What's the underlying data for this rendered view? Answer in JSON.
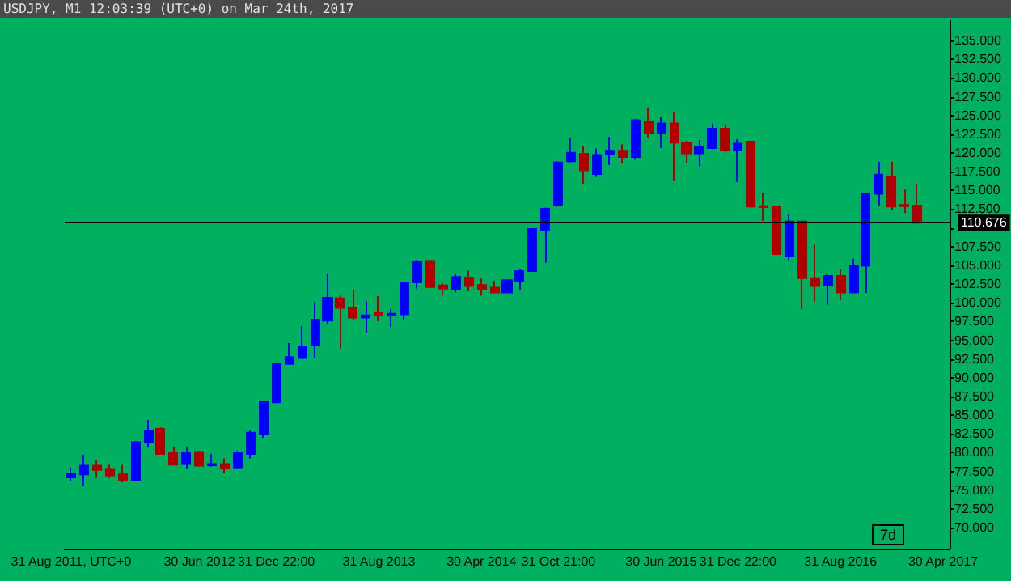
{
  "chart_data": {
    "type": "candlestick",
    "title": "USDJPY, M1 12:03:39 (UTC+0) on Mar 24th, 2017",
    "categories": [
      "31 Aug 2011, UTC+0",
      null,
      null,
      null,
      null,
      null,
      null,
      null,
      null,
      null,
      "30 Jun 2012",
      null,
      null,
      null,
      null,
      null,
      "31 Dec 22:00",
      null,
      null,
      null,
      null,
      null,
      null,
      null,
      "31 Aug 2013",
      null,
      null,
      null,
      null,
      null,
      null,
      null,
      "30 Apr 2014",
      null,
      null,
      null,
      null,
      null,
      "31 Oct 21:00",
      null,
      null,
      null,
      null,
      null,
      null,
      null,
      "30 Jun 2015",
      null,
      null,
      null,
      null,
      null,
      "31 Dec 22:00",
      null,
      null,
      null,
      null,
      null,
      null,
      null,
      "31 Aug 2016",
      null,
      null,
      null,
      null,
      null,
      null,
      null,
      "30 Apr 2017"
    ],
    "ohlc": [
      [
        76.69,
        78.05,
        76.2,
        77.19
      ],
      [
        77.12,
        79.75,
        75.63,
        78.26
      ],
      [
        78.26,
        79.1,
        76.62,
        77.69
      ],
      [
        77.83,
        78.4,
        76.62,
        76.98
      ],
      [
        77.12,
        78.4,
        76.06,
        76.34
      ],
      [
        76.34,
        81.53,
        76.27,
        81.39
      ],
      [
        81.39,
        84.38,
        80.68,
        82.96
      ],
      [
        83.17,
        83.38,
        79.82,
        79.82
      ],
      [
        79.97,
        80.82,
        78.4,
        78.4
      ],
      [
        78.47,
        80.82,
        77.83,
        79.97
      ],
      [
        80.11,
        80.25,
        78.12,
        78.26
      ],
      [
        78.33,
        79.82,
        78.12,
        78.47
      ],
      [
        78.47,
        79.25,
        77.26,
        77.97
      ],
      [
        78.05,
        80.25,
        77.9,
        79.97
      ],
      [
        79.82,
        82.96,
        79.25,
        82.67
      ],
      [
        82.46,
        86.8,
        81.96,
        86.8
      ],
      [
        86.73,
        92.06,
        86.59,
        91.9
      ],
      [
        91.85,
        94.62,
        91.78,
        92.77
      ],
      [
        92.63,
        96.9,
        92.63,
        94.2
      ],
      [
        94.41,
        100.17,
        92.63,
        97.75
      ],
      [
        97.61,
        103.94,
        97.19,
        100.67
      ],
      [
        100.6,
        100.96,
        93.91,
        99.32
      ],
      [
        99.39,
        101.74,
        97.75,
        98.04
      ],
      [
        98.04,
        100.24,
        95.97,
        98.32
      ],
      [
        98.68,
        100.88,
        97.54,
        98.4
      ],
      [
        98.4,
        99.18,
        96.76,
        98.54
      ],
      [
        98.47,
        102.66,
        97.75,
        102.66
      ],
      [
        102.73,
        105.72,
        101.88,
        105.51
      ],
      [
        105.58,
        105.72,
        102.02,
        102.09
      ],
      [
        102.31,
        102.59,
        100.96,
        101.88
      ],
      [
        101.81,
        103.87,
        101.38,
        103.45
      ],
      [
        103.38,
        104.3,
        101.53,
        102.24
      ],
      [
        102.38,
        103.24,
        100.96,
        101.81
      ],
      [
        102.02,
        102.95,
        101.38,
        101.38
      ],
      [
        101.38,
        103.09,
        101.38,
        103.02
      ],
      [
        102.95,
        104.44,
        101.67,
        104.23
      ],
      [
        104.23,
        109.99,
        104.16,
        109.85
      ],
      [
        109.71,
        112.7,
        105.37,
        112.55
      ],
      [
        113.05,
        118.89,
        112.84,
        118.74
      ],
      [
        118.89,
        122.02,
        118.74,
        120.02
      ],
      [
        119.88,
        120.95,
        115.83,
        117.68
      ],
      [
        117.18,
        120.59,
        116.82,
        119.74
      ],
      [
        119.81,
        122.16,
        118.39,
        120.31
      ],
      [
        120.31,
        121.16,
        118.6,
        119.45
      ],
      [
        119.45,
        124.51,
        119.1,
        124.36
      ],
      [
        124.22,
        126.07,
        122.09,
        122.66
      ],
      [
        122.66,
        124.79,
        120.66,
        123.94
      ],
      [
        123.94,
        125.5,
        116.25,
        121.38
      ],
      [
        121.38,
        121.59,
        118.74,
        119.95
      ],
      [
        119.95,
        121.73,
        118.17,
        120.81
      ],
      [
        120.66,
        123.94,
        120.52,
        123.23
      ],
      [
        123.23,
        123.8,
        120.09,
        120.38
      ],
      [
        120.38,
        121.8,
        116.11,
        121.23
      ],
      [
        121.52,
        121.59,
        112.7,
        112.84
      ],
      [
        112.91,
        114.69,
        110.92,
        112.77
      ],
      [
        112.84,
        112.84,
        106.5,
        106.5
      ],
      [
        106.29,
        111.77,
        105.72,
        110.85
      ],
      [
        110.85,
        110.85,
        99.18,
        103.3
      ],
      [
        103.3,
        107.72,
        100.17,
        102.24
      ],
      [
        102.31,
        103.8,
        99.75,
        103.59
      ],
      [
        103.59,
        104.51,
        100.31,
        101.38
      ],
      [
        101.38,
        105.87,
        101.38,
        104.87
      ],
      [
        104.94,
        114.55,
        101.31,
        114.55
      ],
      [
        114.55,
        118.81,
        112.98,
        117.11
      ],
      [
        116.82,
        118.81,
        112.34,
        112.84
      ],
      [
        113.05,
        115.11,
        111.98,
        112.91
      ],
      [
        112.98,
        115.83,
        110.7,
        110.7
      ],
      null,
      null
    ],
    "colors": [
      "#0000ff",
      "#0000ff",
      "#b00000",
      "#b00000",
      "#b00000",
      "#0000ff",
      "#0000ff",
      "#b00000",
      "#b00000",
      "#0000ff",
      "#b00000",
      "#0000ff",
      "#b00000",
      "#0000ff",
      "#0000ff",
      "#0000ff",
      "#0000ff",
      "#0000ff",
      "#0000ff",
      "#0000ff",
      "#0000ff",
      "#b00000",
      "#b00000",
      "#0000ff",
      "#b00000",
      "#0000ff",
      "#0000ff",
      "#0000ff",
      "#b00000",
      "#b00000",
      "#0000ff",
      "#b00000",
      "#b00000",
      "#b00000",
      "#0000ff",
      "#0000ff",
      "#0000ff",
      "#0000ff",
      "#0000ff",
      "#0000ff",
      "#b00000",
      "#0000ff",
      "#0000ff",
      "#b00000",
      "#0000ff",
      "#b00000",
      "#0000ff",
      "#b00000",
      "#b00000",
      "#0000ff",
      "#0000ff",
      "#b00000",
      "#0000ff",
      "#b00000",
      "#b00000",
      "#b00000",
      "#0000ff",
      "#b00000",
      "#b00000",
      "#0000ff",
      "#b00000",
      "#0000ff",
      "#0000ff",
      "#0000ff",
      "#b00000",
      "#b00000",
      "#b00000",
      null,
      null
    ],
    "ylim": [
      67.2,
      137.6
    ],
    "yticks": [
      {
        "value": 70,
        "label": "70.000"
      },
      {
        "value": 72.5,
        "label": "72.500"
      },
      {
        "value": 75,
        "label": "75.000"
      },
      {
        "value": 77.5,
        "label": "77.500"
      },
      {
        "value": 80,
        "label": "80.000"
      },
      {
        "value": 82.5,
        "label": "82.500"
      },
      {
        "value": 85,
        "label": "85.000"
      },
      {
        "value": 87.5,
        "label": "87.500"
      },
      {
        "value": 90,
        "label": "90.000"
      },
      {
        "value": 92.5,
        "label": "92.500"
      },
      {
        "value": 95,
        "label": "95.000"
      },
      {
        "value": 97.5,
        "label": "97.500"
      },
      {
        "value": 100,
        "label": "100.000"
      },
      {
        "value": 102.5,
        "label": "102.500"
      },
      {
        "value": 105,
        "label": "105.000"
      },
      {
        "value": 107.5,
        "label": "107.500"
      },
      {
        "value": 110,
        "label": null
      },
      {
        "value": 112.5,
        "label": "112.500"
      },
      {
        "value": 115,
        "label": "115.000"
      },
      {
        "value": 117.5,
        "label": "117.500"
      },
      {
        "value": 120,
        "label": "120.000"
      },
      {
        "value": 122.5,
        "label": "122.500"
      },
      {
        "value": 125,
        "label": "125.000"
      },
      {
        "value": 127.5,
        "label": "127.500"
      },
      {
        "value": 130,
        "label": "130.000"
      },
      {
        "value": 132.5,
        "label": "132.500"
      },
      {
        "value": 135,
        "label": "135.000"
      }
    ],
    "ref_lines": [
      {
        "axis": "y",
        "value": 110.676,
        "label": "110.676",
        "color": "#000000"
      }
    ],
    "annotations": [
      "7d"
    ],
    "grid": false
  }
}
